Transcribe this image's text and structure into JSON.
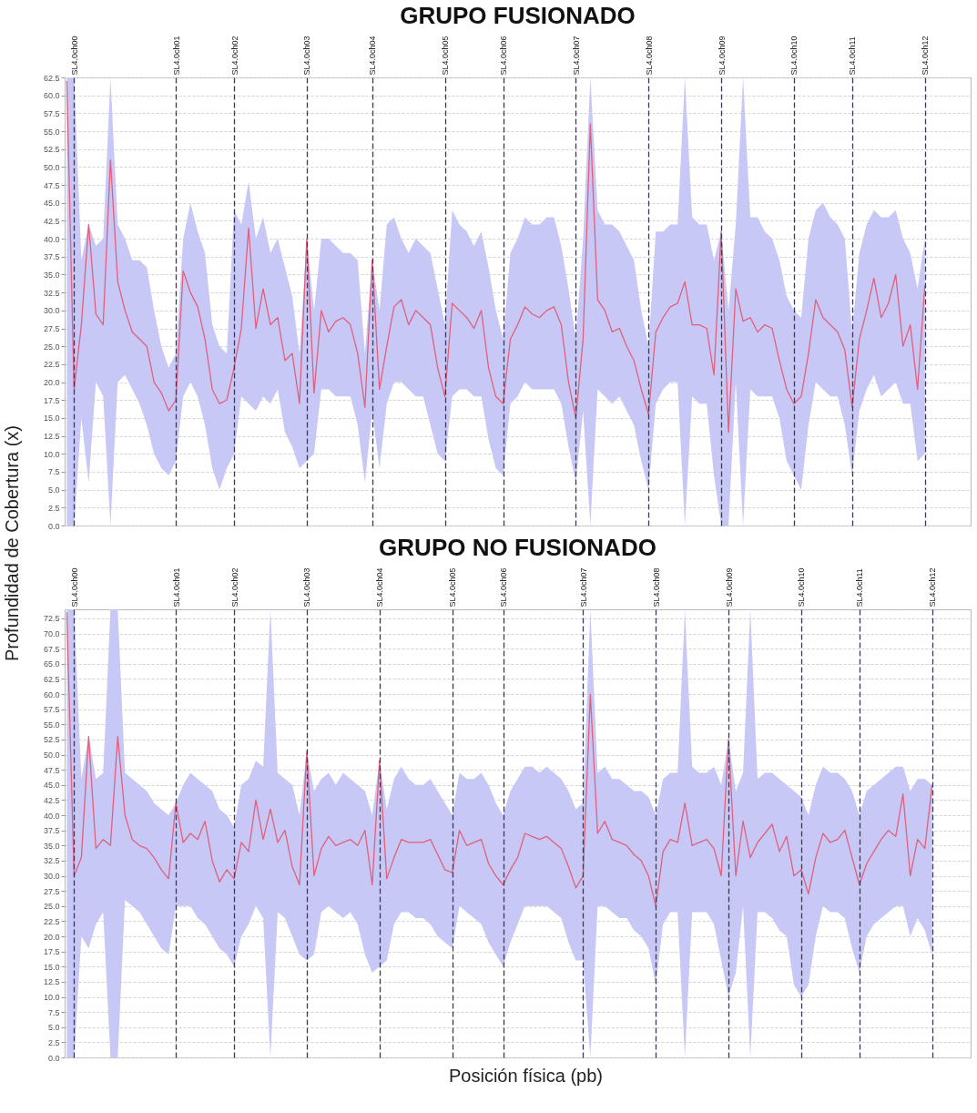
{
  "chart_data": [
    {
      "type": "line",
      "title": "GRUPO FUSIONADO",
      "ylabel": "Profundidad de Cobertura (x)",
      "ylim": [
        0,
        62.5
      ],
      "yticks": [
        {
          "value": 0,
          "label": "0.0"
        },
        2.5,
        {
          "value": 5,
          "label": "5.0"
        },
        7.5,
        {
          "value": 10,
          "label": "10.0"
        },
        12.5,
        {
          "value": 15,
          "label": "15.0"
        },
        17.5,
        {
          "value": 20,
          "label": "20.0"
        },
        22.5,
        {
          "value": 25,
          "label": "25.0"
        },
        27.5,
        {
          "value": 30,
          "label": "30.0"
        },
        32.5,
        {
          "value": 35,
          "label": "35.0"
        },
        37.5,
        {
          "value": 40,
          "label": "40.0"
        },
        42.5,
        {
          "value": 45,
          "label": "45.0"
        },
        47.5,
        {
          "value": 50,
          "label": "50.0"
        },
        52.5,
        {
          "value": 55,
          "label": "55.0"
        },
        57.5,
        {
          "value": 60,
          "label": "60.0"
        },
        62.5
      ],
      "grid": true,
      "categories": [
        null,
        "SL4.0ch00",
        null,
        null,
        null,
        null,
        null,
        null,
        null,
        null,
        null,
        null,
        null,
        null,
        null,
        "SL4.0ch01",
        null,
        null,
        null,
        null,
        null,
        null,
        null,
        "SL4.0ch02",
        null,
        null,
        null,
        null,
        null,
        null,
        null,
        null,
        null,
        "SL4.0ch03",
        null,
        null,
        null,
        null,
        null,
        null,
        null,
        null,
        "SL4.0ch04",
        null,
        null,
        null,
        null,
        null,
        null,
        null,
        null,
        null,
        "SL4.0ch05",
        null,
        null,
        null,
        null,
        null,
        null,
        null,
        "SL4.0ch06",
        null,
        null,
        null,
        null,
        null,
        null,
        null,
        null,
        null,
        "SL4.0ch07",
        null,
        null,
        null,
        null,
        null,
        null,
        null,
        null,
        null,
        "SL4.0ch08",
        null,
        null,
        null,
        null,
        null,
        null,
        null,
        null,
        null,
        "SL4.0ch09",
        null,
        null,
        null,
        null,
        null,
        null,
        null,
        null,
        null,
        "SL4.0ch10",
        null,
        null,
        null,
        null,
        null,
        null,
        null,
        "SL4.0ch11",
        null,
        null,
        null,
        null,
        null,
        null,
        null,
        null,
        null,
        "SL4.0ch12",
        null,
        null,
        null,
        null,
        null,
        null
      ],
      "series": [
        {
          "color": "#e0607e",
          "values": [
            62,
            19,
            28,
            42,
            29.5,
            28,
            51,
            34,
            30,
            27,
            26,
            25,
            20,
            18.5,
            16,
            17.5,
            35.5,
            32.5,
            30.5,
            26,
            19,
            17,
            17.5,
            22,
            27.5,
            41.5,
            27.5,
            33,
            28,
            29,
            23,
            24,
            17,
            40,
            18.5,
            30,
            27,
            28.5,
            29,
            28,
            24,
            16.5,
            37,
            19,
            25,
            30.5,
            31.5,
            28,
            30,
            29,
            28,
            22,
            18,
            31,
            30,
            29,
            27.5,
            30,
            22,
            18,
            17,
            26,
            28,
            30.5,
            29.5,
            29,
            30,
            30.5,
            28,
            20,
            15,
            26,
            56,
            31.5,
            30,
            27,
            27.5,
            25,
            23,
            19,
            15.5,
            27,
            29,
            30.5,
            31,
            34,
            28,
            28,
            27.5,
            21,
            41,
            13,
            33,
            28.5,
            29,
            27,
            28,
            27.5,
            23,
            19,
            17,
            18,
            24,
            31.5,
            29,
            28,
            27,
            24.5,
            16.5,
            26,
            30,
            34.5,
            29,
            31,
            35,
            25,
            28,
            19,
            33.5,
            null,
            null,
            null,
            null,
            null,
            null
          ],
          "lower": [
            0,
            0,
            15,
            6,
            20,
            18,
            0,
            20,
            21,
            19,
            17,
            14,
            10,
            8,
            7,
            9,
            18,
            20,
            18,
            14,
            8,
            5,
            8,
            10,
            18,
            17,
            16,
            18,
            17,
            19,
            13,
            11,
            8,
            9,
            10,
            19,
            19,
            18,
            18,
            18,
            14,
            6,
            16,
            8,
            17,
            20,
            20,
            19,
            18,
            18,
            14,
            10,
            9,
            18,
            19,
            19,
            18,
            18,
            12,
            8,
            7,
            17,
            18,
            20,
            19,
            19,
            19,
            19,
            17,
            11,
            6,
            16,
            0,
            19,
            18,
            17,
            18,
            16,
            14,
            9,
            5,
            17,
            19,
            20,
            20,
            0,
            18,
            17,
            17,
            7,
            0,
            0,
            20,
            0,
            19,
            18,
            18,
            18,
            15,
            9,
            7,
            5,
            14,
            20,
            19,
            18,
            18,
            14,
            7,
            16,
            19,
            21,
            18,
            19,
            20,
            17,
            17,
            9,
            10,
            null,
            null,
            null,
            null,
            null,
            null
          ],
          "upper": [
            62.5,
            62.5,
            37,
            42,
            39,
            40,
            62.5,
            42,
            40,
            37,
            37,
            36,
            30,
            25,
            22,
            24,
            40,
            45,
            41,
            38,
            28,
            25,
            24,
            44,
            42,
            48,
            40,
            43,
            38,
            40,
            36,
            32,
            24,
            40,
            30,
            40,
            40,
            39,
            38,
            38,
            37,
            24,
            37,
            30,
            42,
            43,
            40,
            38,
            40,
            39,
            38,
            33,
            28,
            44,
            42,
            41,
            39,
            41,
            36,
            30,
            26,
            38,
            40,
            43,
            42,
            42,
            43,
            43,
            39,
            33,
            26,
            40,
            62.5,
            44,
            42,
            42,
            41,
            39,
            37,
            30,
            25,
            41,
            41,
            42,
            42,
            62.5,
            43,
            42,
            42,
            37,
            41,
            30,
            42,
            62.5,
            43,
            43,
            41,
            40,
            37,
            32,
            30,
            29,
            40,
            44,
            45,
            43,
            42,
            40,
            27,
            38,
            42,
            44,
            43,
            43,
            44,
            40,
            38,
            33,
            40,
            null,
            null,
            null,
            null,
            null,
            null
          ]
        }
      ]
    },
    {
      "type": "line",
      "title": "GRUPO NO FUSIONADO",
      "xlabel": "Posición física (pb)",
      "ylim": [
        0,
        74
      ],
      "yticks": [
        {
          "value": 0,
          "label": "0.0"
        },
        2.5,
        {
          "value": 5,
          "label": "5.0"
        },
        7.5,
        {
          "value": 10,
          "label": "10.0"
        },
        12.5,
        {
          "value": 15,
          "label": "15.0"
        },
        17.5,
        {
          "value": 20,
          "label": "20.0"
        },
        22.5,
        {
          "value": 25,
          "label": "25.0"
        },
        27.5,
        {
          "value": 30,
          "label": "30.0"
        },
        32.5,
        {
          "value": 35,
          "label": "35.0"
        },
        37.5,
        {
          "value": 40,
          "label": "40.0"
        },
        42.5,
        {
          "value": 45,
          "label": "45.0"
        },
        47.5,
        {
          "value": 50,
          "label": "50.0"
        },
        52.5,
        {
          "value": 55,
          "label": "55.0"
        },
        57.5,
        {
          "value": 60,
          "label": "60.0"
        },
        62.5,
        {
          "value": 65,
          "label": "65.0"
        },
        67.5,
        {
          "value": 70,
          "label": "70.0"
        },
        72.5
      ],
      "grid": true,
      "categories": [
        null,
        "SL4.0ch00",
        null,
        null,
        null,
        null,
        null,
        null,
        null,
        null,
        null,
        null,
        null,
        null,
        null,
        "SL4.0ch01",
        null,
        null,
        null,
        null,
        null,
        null,
        null,
        "SL4.0ch02",
        null,
        null,
        null,
        null,
        null,
        null,
        null,
        null,
        null,
        "SL4.0ch03",
        null,
        null,
        null,
        null,
        null,
        null,
        null,
        null,
        null,
        "SL4.0ch04",
        null,
        null,
        null,
        null,
        null,
        null,
        null,
        null,
        null,
        "SL4.0ch05",
        null,
        null,
        null,
        null,
        null,
        null,
        "SL4.0ch06",
        null,
        null,
        null,
        null,
        null,
        null,
        null,
        null,
        null,
        null,
        "SL4.0ch07",
        null,
        null,
        null,
        null,
        null,
        null,
        null,
        null,
        null,
        "SL4.0ch08",
        null,
        null,
        null,
        null,
        null,
        null,
        null,
        null,
        null,
        "SL4.0ch09",
        null,
        null,
        null,
        null,
        null,
        null,
        null,
        null,
        null,
        "SL4.0ch10",
        null,
        null,
        null,
        null,
        null,
        null,
        null,
        "SL4.0ch11",
        null,
        null,
        null,
        null,
        null,
        null,
        null,
        null,
        null,
        "SL4.0ch12",
        null,
        null,
        null,
        null,
        null
      ],
      "series": [
        {
          "color": "#e0607e",
          "values": [
            73.5,
            30,
            33,
            53,
            34.5,
            36,
            35,
            53,
            40,
            36,
            35,
            34.5,
            33,
            31,
            29.5,
            42,
            35.5,
            37,
            36,
            39,
            32.5,
            29,
            31,
            29.5,
            35.5,
            34,
            42.5,
            36,
            41,
            35.5,
            37.5,
            31.5,
            28.5,
            50.5,
            30,
            34.5,
            36.5,
            35,
            35.5,
            36,
            35,
            37.5,
            28.5,
            49,
            29.5,
            33,
            36,
            35.5,
            35.5,
            35.5,
            36,
            33.5,
            31,
            30.5,
            37.5,
            35,
            35.5,
            36,
            32,
            30,
            28.5,
            31,
            33,
            37,
            36.5,
            36,
            36.5,
            35.5,
            34.5,
            31.5,
            28,
            30,
            60,
            37,
            39,
            36,
            35.5,
            35,
            33.5,
            32.5,
            30,
            25,
            34,
            36,
            35.5,
            42,
            35,
            35.5,
            36,
            34.5,
            30,
            52.5,
            30,
            39,
            33,
            35.5,
            37,
            38.5,
            34,
            36.5,
            30,
            31,
            27,
            33,
            37,
            35.5,
            36,
            37.5,
            33,
            28.5,
            32,
            34,
            36,
            37.5,
            36.5,
            43.5,
            30,
            36,
            34.5,
            45,
            null,
            null,
            null,
            null,
            null
          ],
          "lower": [
            0,
            0,
            20,
            18,
            22,
            24,
            0,
            0,
            26,
            25,
            24,
            22,
            20,
            18,
            17,
            25,
            25,
            25,
            23,
            22,
            20,
            18,
            17,
            15,
            20,
            22,
            25,
            23,
            0,
            24,
            23,
            20,
            17,
            16,
            17,
            24,
            25,
            24,
            23,
            24,
            22,
            17,
            14,
            15,
            16,
            22,
            24,
            24,
            23,
            23,
            22,
            20,
            19,
            18,
            25,
            24,
            23,
            22,
            19,
            17,
            15,
            19,
            22,
            25,
            25,
            25,
            25,
            24,
            23,
            19,
            16,
            16,
            0,
            25,
            25,
            24,
            23,
            23,
            21,
            20,
            18,
            12,
            22,
            24,
            24,
            0,
            24,
            24,
            24,
            22,
            16,
            10,
            14,
            25,
            0,
            24,
            24,
            23,
            21,
            20,
            12,
            10,
            12,
            20,
            25,
            24,
            24,
            23,
            18,
            14,
            20,
            22,
            23,
            24,
            25,
            25,
            20,
            23,
            21,
            17,
            null,
            null,
            null,
            null,
            null
          ],
          "upper": [
            74,
            74,
            46,
            53,
            46,
            47,
            74,
            74,
            47,
            46,
            45,
            44,
            42,
            41,
            40,
            42,
            45,
            47,
            46,
            45,
            44,
            41,
            40,
            38,
            45,
            46,
            49,
            48,
            74,
            47,
            46,
            45,
            40,
            50.5,
            44,
            46,
            47,
            45,
            47,
            46,
            45,
            44,
            40,
            49,
            41,
            46,
            48,
            46,
            45,
            45,
            46,
            44,
            42,
            40,
            47,
            46,
            46,
            47,
            45,
            42,
            40,
            44,
            46,
            48,
            48,
            47,
            48,
            47,
            46,
            44,
            41,
            42,
            74,
            47,
            48,
            46,
            46,
            45,
            44,
            44,
            43,
            40,
            46,
            47,
            47,
            74,
            48,
            47,
            47,
            48,
            45,
            52.5,
            44,
            47,
            74,
            46,
            47,
            47,
            46,
            45,
            44,
            43,
            40,
            45,
            48,
            47,
            47,
            46,
            44,
            40,
            44,
            45,
            46,
            47,
            48,
            48,
            44,
            46,
            46,
            45,
            null,
            null,
            null,
            null,
            null
          ]
        }
      ]
    }
  ]
}
